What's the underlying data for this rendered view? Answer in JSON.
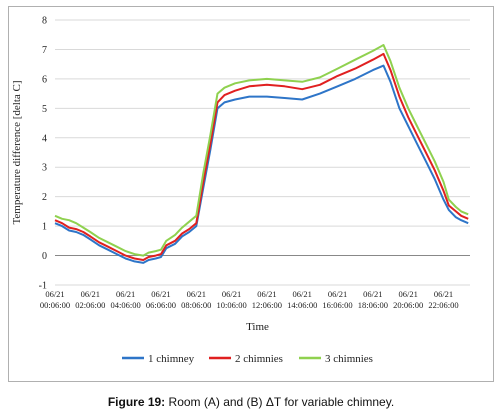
{
  "caption": {
    "label": "Figure 19:",
    "text": " Room (A) and (B) ΔT for variable chimney."
  },
  "chart_data": {
    "type": "line",
    "title": "",
    "xlabel": "Time",
    "ylabel": "Temperature difference [delta C]",
    "ylim": [
      -1,
      8
    ],
    "yticks": [
      -1,
      0,
      1,
      2,
      3,
      4,
      5,
      6,
      7,
      8
    ],
    "xlim": [
      0,
      23.5
    ],
    "xtick_labels": [
      {
        "date": "06/21",
        "time": "00:06:00"
      },
      {
        "date": "06/21",
        "time": "02:06:00"
      },
      {
        "date": "06/21",
        "time": "04:06:00"
      },
      {
        "date": "06/21",
        "time": "06:06:00"
      },
      {
        "date": "06/21",
        "time": "08:06:00"
      },
      {
        "date": "06/21",
        "time": "10:06:00"
      },
      {
        "date": "06/21",
        "time": "12:06:00"
      },
      {
        "date": "06/21",
        "time": "14:06:00"
      },
      {
        "date": "06/21",
        "time": "16:06:00"
      },
      {
        "date": "06/21",
        "time": "18:06:00"
      },
      {
        "date": "06/21",
        "time": "20:06:00"
      },
      {
        "date": "06/21",
        "time": "22:06:00"
      }
    ],
    "grid": "horizontal",
    "legend_position": "bottom",
    "series": [
      {
        "name": "1 chimney",
        "color": "#2e75c8",
        "x": [
          0.0,
          0.4,
          0.8,
          1.2,
          1.6,
          2.0,
          2.5,
          3.0,
          3.5,
          4.0,
          4.5,
          5.0,
          5.3,
          5.7,
          6.0,
          6.3,
          6.8,
          7.2,
          7.6,
          8.0,
          8.4,
          8.8,
          9.2,
          9.6,
          10.2,
          11.0,
          12.0,
          13.0,
          14.0,
          15.0,
          16.0,
          17.0,
          18.0,
          18.6,
          19.0,
          19.5,
          20.0,
          20.5,
          21.0,
          21.5,
          22.0,
          22.3,
          22.7,
          23.0,
          23.4
        ],
        "y": [
          1.1,
          1.0,
          0.85,
          0.8,
          0.7,
          0.55,
          0.35,
          0.2,
          0.05,
          -0.1,
          -0.2,
          -0.25,
          -0.15,
          -0.1,
          -0.05,
          0.25,
          0.4,
          0.65,
          0.8,
          1.0,
          2.3,
          3.6,
          5.0,
          5.2,
          5.3,
          5.4,
          5.4,
          5.35,
          5.3,
          5.5,
          5.75,
          6.0,
          6.3,
          6.45,
          5.9,
          5.0,
          4.4,
          3.8,
          3.2,
          2.6,
          1.9,
          1.55,
          1.3,
          1.2,
          1.1
        ]
      },
      {
        "name": "2 chimnies",
        "color": "#e02020",
        "x": [
          0.0,
          0.4,
          0.8,
          1.2,
          1.6,
          2.0,
          2.5,
          3.0,
          3.5,
          4.0,
          4.5,
          5.0,
          5.3,
          5.7,
          6.0,
          6.3,
          6.8,
          7.2,
          7.6,
          8.0,
          8.4,
          8.8,
          9.2,
          9.6,
          10.2,
          11.0,
          12.0,
          13.0,
          14.0,
          15.0,
          16.0,
          17.0,
          18.0,
          18.6,
          19.0,
          19.5,
          20.0,
          20.5,
          21.0,
          21.5,
          22.0,
          22.3,
          22.7,
          23.0,
          23.4
        ],
        "y": [
          1.2,
          1.1,
          0.95,
          0.9,
          0.8,
          0.65,
          0.45,
          0.3,
          0.15,
          0.0,
          -0.1,
          -0.15,
          -0.05,
          0.0,
          0.05,
          0.35,
          0.5,
          0.75,
          0.9,
          1.1,
          2.5,
          3.8,
          5.2,
          5.45,
          5.6,
          5.75,
          5.8,
          5.75,
          5.65,
          5.8,
          6.1,
          6.35,
          6.65,
          6.85,
          6.3,
          5.4,
          4.7,
          4.1,
          3.5,
          2.9,
          2.2,
          1.7,
          1.5,
          1.35,
          1.25
        ]
      },
      {
        "name": "3 chimnies",
        "color": "#8fd14f",
        "x": [
          0.0,
          0.4,
          0.8,
          1.2,
          1.6,
          2.0,
          2.5,
          3.0,
          3.5,
          4.0,
          4.5,
          5.0,
          5.3,
          5.7,
          6.0,
          6.3,
          6.8,
          7.2,
          7.6,
          8.0,
          8.4,
          8.8,
          9.2,
          9.6,
          10.2,
          11.0,
          12.0,
          13.0,
          14.0,
          15.0,
          16.0,
          17.0,
          18.0,
          18.6,
          19.0,
          19.5,
          20.0,
          20.5,
          21.0,
          21.5,
          22.0,
          22.3,
          22.7,
          23.0,
          23.4
        ],
        "y": [
          1.35,
          1.25,
          1.2,
          1.1,
          0.95,
          0.8,
          0.6,
          0.45,
          0.3,
          0.15,
          0.05,
          0.0,
          0.1,
          0.15,
          0.2,
          0.5,
          0.7,
          0.95,
          1.15,
          1.35,
          2.8,
          4.1,
          5.5,
          5.7,
          5.85,
          5.95,
          6.0,
          5.95,
          5.9,
          6.05,
          6.35,
          6.65,
          6.95,
          7.15,
          6.6,
          5.7,
          5.0,
          4.4,
          3.8,
          3.2,
          2.5,
          1.9,
          1.65,
          1.5,
          1.4
        ]
      }
    ]
  }
}
